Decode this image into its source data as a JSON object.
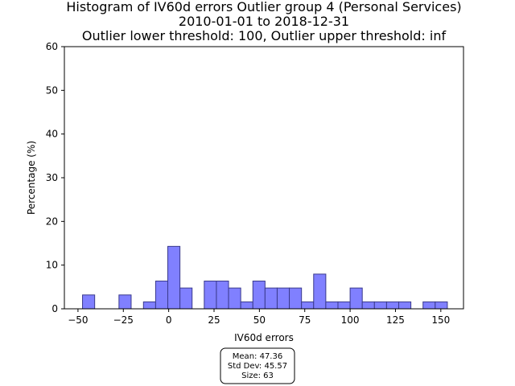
{
  "chart_data": {
    "type": "bar",
    "title_lines": [
      "Histogram of IV60d errors Outlier group 4 (Personal Services)",
      "2010-01-01 to 2018-12-31",
      "Outlier lower threshold: 100, Outlier upper threshold: inf"
    ],
    "xlabel": "IV60d errors",
    "ylabel": "Percentage (%)",
    "xlim": [
      -57.5,
      162.5
    ],
    "ylim": [
      0,
      60
    ],
    "xticks": [
      -50,
      -25,
      0,
      25,
      50,
      75,
      100,
      125,
      150
    ],
    "yticks": [
      0,
      10,
      20,
      30,
      40,
      50,
      60
    ],
    "grid": false,
    "bar_color": "#8080ff",
    "bar_edge_color": "#3a3a8c",
    "bin_width": 6.7,
    "bins": [
      {
        "x0": -47.5,
        "value": 3.17
      },
      {
        "x0": -27.4,
        "value": 3.17
      },
      {
        "x0": -13.9,
        "value": 1.59
      },
      {
        "x0": -7.2,
        "value": 6.35
      },
      {
        "x0": -0.5,
        "value": 14.29
      },
      {
        "x0": 6.2,
        "value": 4.76
      },
      {
        "x0": 19.6,
        "value": 6.35
      },
      {
        "x0": 26.3,
        "value": 6.35
      },
      {
        "x0": 33.0,
        "value": 4.76
      },
      {
        "x0": 39.7,
        "value": 1.59
      },
      {
        "x0": 46.4,
        "value": 6.35
      },
      {
        "x0": 53.1,
        "value": 4.76
      },
      {
        "x0": 59.8,
        "value": 4.76
      },
      {
        "x0": 66.5,
        "value": 4.76
      },
      {
        "x0": 73.2,
        "value": 1.59
      },
      {
        "x0": 79.9,
        "value": 7.94
      },
      {
        "x0": 86.6,
        "value": 1.59
      },
      {
        "x0": 93.3,
        "value": 1.59
      },
      {
        "x0": 100.0,
        "value": 4.76
      },
      {
        "x0": 106.7,
        "value": 1.59
      },
      {
        "x0": 113.4,
        "value": 1.59
      },
      {
        "x0": 120.1,
        "value": 1.59
      },
      {
        "x0": 126.8,
        "value": 1.59
      },
      {
        "x0": 140.2,
        "value": 1.59
      },
      {
        "x0": 146.9,
        "value": 1.59
      }
    ],
    "stats_box": {
      "mean": "Mean: 47.36",
      "std": "Std Dev: 45.57",
      "size": "Size: 63"
    }
  }
}
